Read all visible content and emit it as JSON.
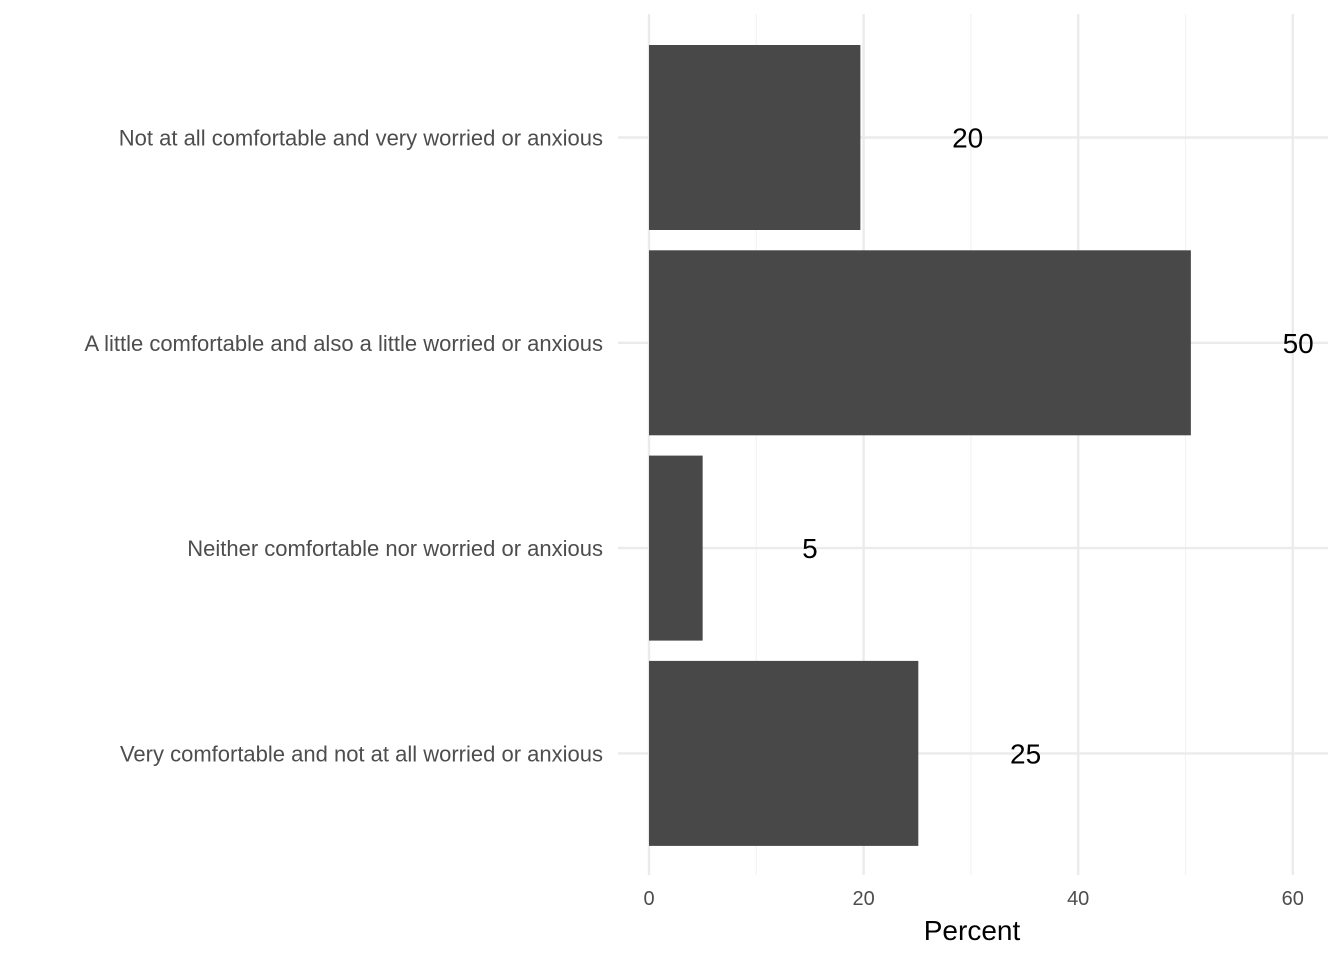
{
  "chart_data": {
    "type": "bar",
    "orientation": "horizontal",
    "categories": [
      "Not at all comfortable and very worried or anxious",
      "A little comfortable and also a little worried or anxious",
      "Neither comfortable nor worried or anxious",
      "Very comfortable and not at all worried or anxious"
    ],
    "values": [
      19.7,
      50.5,
      5,
      25.1
    ],
    "value_labels": [
      "20",
      "50",
      "5",
      "25"
    ],
    "xlabel": "Percent",
    "ylabel": "",
    "xlim": [
      0,
      63.5
    ],
    "xticks": [
      0,
      20,
      40,
      60
    ],
    "xtick_labels": [
      "0",
      "20",
      "40",
      "60"
    ],
    "grid": true,
    "colors": {
      "bar": "#484848",
      "grid_major": "#ebebeb",
      "grid_minor": "#f3f3f3"
    }
  }
}
